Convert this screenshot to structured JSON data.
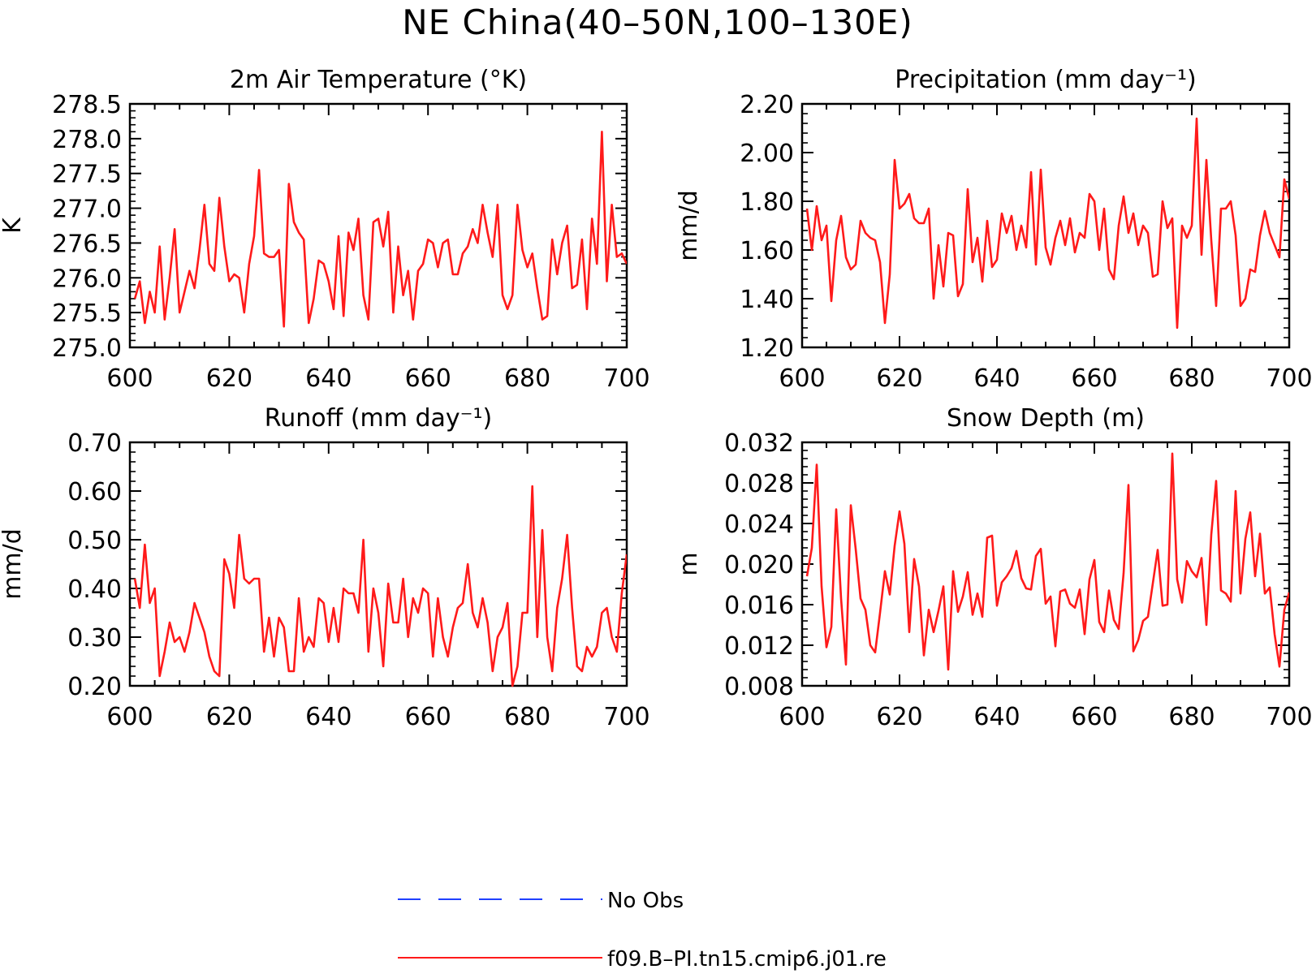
{
  "figure": {
    "title": "NE China(40–50N,100–130E)"
  },
  "legend": {
    "items": [
      {
        "label": "No Obs",
        "color": "#1f3fff",
        "style": "dashed"
      },
      {
        "label": "f09.B–PI.tn15.cmip6.j01.re",
        "color": "#ff1a1a",
        "style": "solid"
      }
    ]
  },
  "chart_data": [
    {
      "type": "line",
      "title": "2m Air Temperature (°K)",
      "ylabel": "K",
      "xlabel": "",
      "xlim": [
        600,
        700
      ],
      "ylim": [
        275.0,
        278.5
      ],
      "xticks": [
        600,
        620,
        640,
        660,
        680,
        700
      ],
      "yticks": [
        "275.0",
        "275.5",
        "276.0",
        "276.5",
        "277.0",
        "277.5",
        "278.0",
        "278.5"
      ],
      "x_start": 601,
      "series": [
        {
          "name": "f09.B–PI.tn15.cmip6.j01.re",
          "color": "#ff1a1a",
          "values": [
            275.7,
            275.95,
            275.35,
            275.8,
            275.5,
            276.45,
            275.4,
            276.0,
            276.7,
            275.5,
            275.8,
            276.1,
            275.85,
            276.4,
            277.05,
            276.2,
            276.1,
            277.15,
            276.45,
            275.95,
            276.05,
            276.0,
            275.5,
            276.2,
            276.6,
            277.55,
            276.35,
            276.3,
            276.3,
            276.4,
            275.3,
            277.35,
            276.8,
            276.65,
            276.55,
            275.35,
            275.7,
            276.25,
            276.2,
            275.95,
            275.55,
            276.6,
            275.45,
            276.65,
            276.4,
            276.85,
            275.75,
            275.4,
            276.8,
            276.85,
            276.45,
            276.95,
            275.5,
            276.45,
            275.75,
            276.1,
            275.4,
            276.1,
            276.2,
            276.55,
            276.5,
            276.15,
            276.5,
            276.55,
            276.05,
            276.05,
            276.35,
            276.45,
            276.7,
            276.5,
            277.05,
            276.65,
            276.3,
            277.05,
            275.75,
            275.55,
            275.75,
            277.05,
            276.4,
            276.15,
            276.35,
            275.85,
            275.4,
            275.45,
            276.55,
            276.05,
            276.5,
            276.75,
            275.85,
            275.9,
            276.55,
            275.55,
            276.85,
            276.2,
            278.1,
            275.95,
            277.05,
            276.3,
            276.35,
            276.2
          ]
        }
      ]
    },
    {
      "type": "line",
      "title": "Precipitation (mm day⁻¹)",
      "ylabel": "mm/d",
      "xlabel": "",
      "xlim": [
        600,
        700
      ],
      "ylim": [
        1.2,
        2.2
      ],
      "xticks": [
        600,
        620,
        640,
        660,
        680,
        700
      ],
      "yticks": [
        "1.20",
        "1.40",
        "1.60",
        "1.80",
        "2.00",
        "2.20"
      ],
      "x_start": 601,
      "series": [
        {
          "name": "f09.B–PI.tn15.cmip6.j01.re",
          "color": "#ff1a1a",
          "values": [
            1.77,
            1.6,
            1.78,
            1.64,
            1.7,
            1.39,
            1.64,
            1.74,
            1.57,
            1.52,
            1.54,
            1.72,
            1.67,
            1.65,
            1.64,
            1.55,
            1.3,
            1.5,
            1.97,
            1.77,
            1.79,
            1.83,
            1.73,
            1.71,
            1.71,
            1.77,
            1.4,
            1.62,
            1.45,
            1.67,
            1.66,
            1.41,
            1.46,
            1.85,
            1.55,
            1.65,
            1.47,
            1.72,
            1.53,
            1.56,
            1.75,
            1.67,
            1.74,
            1.6,
            1.7,
            1.61,
            1.92,
            1.54,
            1.93,
            1.61,
            1.54,
            1.65,
            1.72,
            1.62,
            1.73,
            1.59,
            1.67,
            1.65,
            1.83,
            1.8,
            1.6,
            1.77,
            1.52,
            1.48,
            1.7,
            1.82,
            1.67,
            1.75,
            1.62,
            1.7,
            1.67,
            1.49,
            1.5,
            1.8,
            1.69,
            1.73,
            1.28,
            1.7,
            1.65,
            1.7,
            2.14,
            1.58,
            1.97,
            1.64,
            1.37,
            1.77,
            1.77,
            1.8,
            1.66,
            1.37,
            1.4,
            1.52,
            1.51,
            1.66,
            1.76,
            1.67,
            1.62,
            1.57,
            1.89,
            1.81
          ]
        }
      ]
    },
    {
      "type": "line",
      "title": "Runoff (mm day⁻¹)",
      "ylabel": "mm/d",
      "xlabel": "",
      "xlim": [
        600,
        700
      ],
      "ylim": [
        0.2,
        0.7
      ],
      "xticks": [
        600,
        620,
        640,
        660,
        680,
        700
      ],
      "yticks": [
        "0.20",
        "0.30",
        "0.40",
        "0.50",
        "0.60",
        "0.70"
      ],
      "x_start": 601,
      "series": [
        {
          "name": "f09.B–PI.tn15.cmip6.j01.re",
          "color": "#ff1a1a",
          "values": [
            0.42,
            0.36,
            0.49,
            0.37,
            0.4,
            0.22,
            0.27,
            0.33,
            0.29,
            0.3,
            0.27,
            0.31,
            0.37,
            0.34,
            0.31,
            0.26,
            0.23,
            0.22,
            0.46,
            0.43,
            0.36,
            0.51,
            0.42,
            0.41,
            0.42,
            0.42,
            0.27,
            0.34,
            0.26,
            0.34,
            0.32,
            0.23,
            0.23,
            0.38,
            0.27,
            0.3,
            0.28,
            0.38,
            0.37,
            0.29,
            0.36,
            0.29,
            0.4,
            0.39,
            0.39,
            0.35,
            0.5,
            0.27,
            0.4,
            0.35,
            0.24,
            0.41,
            0.33,
            0.33,
            0.42,
            0.3,
            0.38,
            0.35,
            0.4,
            0.39,
            0.26,
            0.38,
            0.3,
            0.26,
            0.32,
            0.36,
            0.37,
            0.45,
            0.35,
            0.32,
            0.38,
            0.33,
            0.23,
            0.3,
            0.32,
            0.37,
            0.2,
            0.24,
            0.35,
            0.35,
            0.61,
            0.3,
            0.52,
            0.3,
            0.23,
            0.36,
            0.42,
            0.51,
            0.36,
            0.24,
            0.23,
            0.28,
            0.26,
            0.28,
            0.35,
            0.36,
            0.3,
            0.27,
            0.39,
            0.47
          ]
        }
      ]
    },
    {
      "type": "line",
      "title": "Snow Depth (m)",
      "ylabel": "m",
      "xlabel": "",
      "xlim": [
        600,
        700
      ],
      "ylim": [
        0.008,
        0.032
      ],
      "xticks": [
        600,
        620,
        640,
        660,
        680,
        700
      ],
      "yticks": [
        "0.008",
        "0.012",
        "0.016",
        "0.020",
        "0.024",
        "0.028",
        "0.032"
      ],
      "x_start": 601,
      "series": [
        {
          "name": "f09.B–PI.tn15.cmip6.j01.re",
          "color": "#ff1a1a",
          "values": [
            0.0188,
            0.0216,
            0.0298,
            0.0178,
            0.0118,
            0.0138,
            0.0254,
            0.0166,
            0.0101,
            0.0258,
            0.0215,
            0.0166,
            0.0155,
            0.012,
            0.0113,
            0.0152,
            0.0193,
            0.017,
            0.0218,
            0.0252,
            0.022,
            0.0133,
            0.0205,
            0.0178,
            0.011,
            0.0155,
            0.0133,
            0.0154,
            0.0178,
            0.0096,
            0.0193,
            0.0153,
            0.0168,
            0.0192,
            0.015,
            0.0171,
            0.0148,
            0.0226,
            0.0228,
            0.0159,
            0.0182,
            0.0188,
            0.0196,
            0.0213,
            0.0186,
            0.0176,
            0.0175,
            0.0208,
            0.0215,
            0.0161,
            0.0168,
            0.0119,
            0.0173,
            0.0175,
            0.0161,
            0.0157,
            0.0175,
            0.0131,
            0.0185,
            0.0204,
            0.0143,
            0.0133,
            0.0174,
            0.0145,
            0.0136,
            0.0191,
            0.0278,
            0.0114,
            0.0125,
            0.0144,
            0.0148,
            0.0181,
            0.0214,
            0.0159,
            0.016,
            0.0309,
            0.0185,
            0.0162,
            0.0203,
            0.0193,
            0.0187,
            0.0206,
            0.014,
            0.0229,
            0.0282,
            0.0174,
            0.0171,
            0.0163,
            0.0272,
            0.0171,
            0.0225,
            0.0251,
            0.0188,
            0.023,
            0.0171,
            0.0177,
            0.0131,
            0.0099,
            0.0155,
            0.0172
          ]
        }
      ]
    }
  ]
}
